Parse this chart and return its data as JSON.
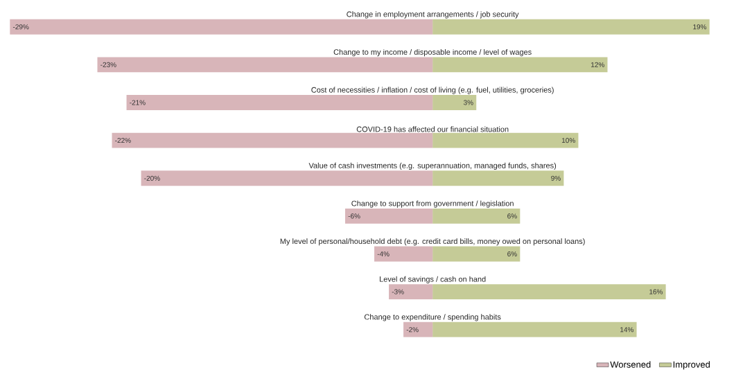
{
  "chart_data": {
    "type": "bar",
    "orientation": "horizontal",
    "categories": [
      "Change in employment arrangements / job security",
      "Change to my income / disposable income / level of wages",
      "Cost of necessities / inflation / cost of living (e.g. fuel, utilities, groceries)",
      "COVID-19 has affected our financial situation",
      "Value of cash investments (e.g. superannuation, managed funds, shares)",
      "Change to support from government / legislation",
      "My level of personal/household debt (e.g. credit card bills, money owed on personal loans)",
      "Level of savings / cash on hand",
      "Change to expenditure / spending habits"
    ],
    "series": [
      {
        "name": "Worsened",
        "color": "#d8b5b9",
        "values": [
          -29,
          -23,
          -21,
          -22,
          -20,
          -6,
          -4,
          -3,
          -2
        ],
        "value_labels": [
          "-29%",
          "-23%",
          "-21%",
          "-22%",
          "-20%",
          "-6%",
          "-4%",
          "-3%",
          "-2%"
        ]
      },
      {
        "name": "Improved",
        "color": "#c5cb97",
        "values": [
          19,
          12,
          3,
          10,
          9,
          6,
          6,
          16,
          14
        ],
        "value_labels": [
          "19%",
          "12%",
          "3%",
          "10%",
          "9%",
          "6%",
          "6%",
          "16%",
          "14%"
        ]
      }
    ],
    "legend": "bottom right",
    "stacked": true
  }
}
